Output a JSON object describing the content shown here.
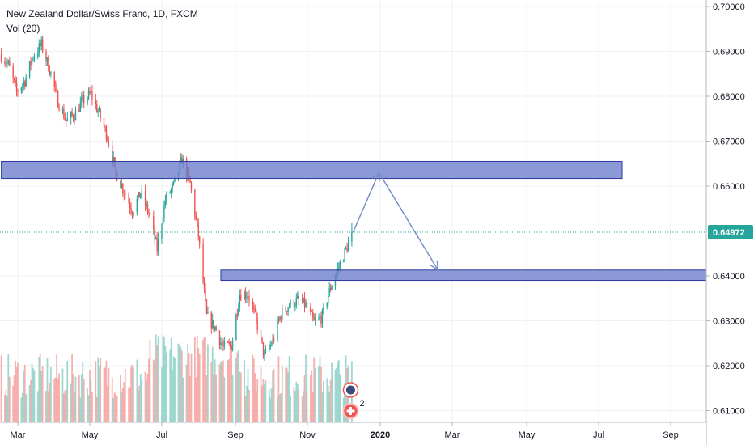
{
  "header": {
    "title": "New Zealand Dollar/Swiss Franc, 1D, FXCM",
    "indicator": "Vol (20)"
  },
  "price_badge": {
    "value": "0.64972"
  },
  "colors": {
    "up": "#26a69a",
    "down": "#ef5350",
    "vol_up": "#8fd1c8",
    "vol_down": "#f5a3a0",
    "zone_fill": "#6e7fcc",
    "zone_stroke": "#2c3a9e",
    "arrow": "#7a8fc9",
    "badge": "#26a69a",
    "grid": "#eef1f6",
    "current_line": "#26a69a"
  },
  "icons": {
    "event_icon_1": "flag-icon",
    "event_icon_2": "plus-circle-icon",
    "event_count": "2"
  },
  "chart_data": {
    "type": "candlestick",
    "title": "New Zealand Dollar/Swiss Franc, 1D, FXCM",
    "indicator": "Vol (20)",
    "y_axis_ticks": [
      "0.70000",
      "0.69000",
      "0.68000",
      "0.67000",
      "0.66000",
      "0.65000",
      "0.64000",
      "0.63000",
      "0.62000",
      "0.61000"
    ],
    "x_axis_ticks": [
      {
        "label": "Mar",
        "bold": false
      },
      {
        "label": "May",
        "bold": false
      },
      {
        "label": "Jul",
        "bold": false
      },
      {
        "label": "Sep",
        "bold": false
      },
      {
        "label": "Nov",
        "bold": false
      },
      {
        "label": "2020",
        "bold": true
      },
      {
        "label": "Mar",
        "bold": false
      },
      {
        "label": "May",
        "bold": false
      },
      {
        "label": "Jul",
        "bold": false
      },
      {
        "label": "Sep",
        "bold": false
      }
    ],
    "ylim": [
      0.6085,
      0.701
    ],
    "current_price": 0.64972,
    "price_path": [
      [
        "2019-02-15",
        0.6895
      ],
      [
        "2019-02-22",
        0.687
      ],
      [
        "2019-03-01",
        0.681
      ],
      [
        "2019-03-08",
        0.6835
      ],
      [
        "2019-03-15",
        0.689
      ],
      [
        "2019-03-22",
        0.6915
      ],
      [
        "2019-03-29",
        0.686
      ],
      [
        "2019-04-05",
        0.679
      ],
      [
        "2019-04-12",
        0.6745
      ],
      [
        "2019-04-19",
        0.676
      ],
      [
        "2019-04-26",
        0.679
      ],
      [
        "2019-05-03",
        0.6805
      ],
      [
        "2019-05-10",
        0.676
      ],
      [
        "2019-05-17",
        0.671
      ],
      [
        "2019-05-24",
        0.663
      ],
      [
        "2019-05-31",
        0.659
      ],
      [
        "2019-06-07",
        0.6545
      ],
      [
        "2019-06-14",
        0.6585
      ],
      [
        "2019-06-21",
        0.654
      ],
      [
        "2019-06-28",
        0.646
      ],
      [
        "2019-07-05",
        0.657
      ],
      [
        "2019-07-12",
        0.66
      ],
      [
        "2019-07-19",
        0.666
      ],
      [
        "2019-07-26",
        0.6605
      ],
      [
        "2019-08-02",
        0.649
      ],
      [
        "2019-08-09",
        0.631
      ],
      [
        "2019-08-16",
        0.6285
      ],
      [
        "2019-08-23",
        0.624
      ],
      [
        "2019-08-30",
        0.6245
      ],
      [
        "2019-09-06",
        0.636
      ],
      [
        "2019-09-13",
        0.636
      ],
      [
        "2019-09-20",
        0.63
      ],
      [
        "2019-09-27",
        0.622
      ],
      [
        "2019-10-04",
        0.6255
      ],
      [
        "2019-10-11",
        0.6315
      ],
      [
        "2019-10-18",
        0.6335
      ],
      [
        "2019-10-25",
        0.6345
      ],
      [
        "2019-11-01",
        0.6335
      ],
      [
        "2019-11-08",
        0.6295
      ],
      [
        "2019-11-15",
        0.631
      ],
      [
        "2019-11-22",
        0.6375
      ],
      [
        "2019-11-29",
        0.642
      ],
      [
        "2019-12-06",
        0.6465
      ],
      [
        "2019-12-10",
        0.6497
      ]
    ],
    "zones": [
      {
        "start": "2019-02-15",
        "end": "2020-07-25",
        "low": 0.6617,
        "high": 0.6655
      },
      {
        "start": "2019-08-20",
        "end": "2020-10-05",
        "low": 0.639,
        "high": 0.6413
      }
    ],
    "projection": [
      [
        "2019-12-10",
        0.6497
      ],
      [
        "2020-01-01",
        0.663
      ],
      [
        "2020-02-20",
        0.6413
      ]
    ],
    "event_dates": [
      "2019-12-08",
      "2019-12-08"
    ],
    "vol_range": [
      0,
      1
    ]
  }
}
